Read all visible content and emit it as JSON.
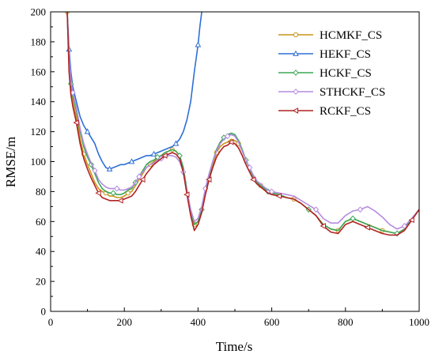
{
  "chart_data": {
    "type": "line",
    "title": "",
    "xlabel": "Time/s",
    "ylabel": "RMSE/m",
    "xlim": [
      0,
      1000
    ],
    "ylim": [
      0,
      200
    ],
    "xticks": [
      0,
      200,
      400,
      600,
      800,
      1000
    ],
    "yticks": [
      0,
      20,
      40,
      60,
      80,
      100,
      120,
      140,
      160,
      180,
      200
    ],
    "legend_position": "top-right",
    "grid": false,
    "series": [
      {
        "name": "HCMKF_CS",
        "color": "#c8961a",
        "marker": "circle",
        "x": [
          45,
          50,
          55,
          60,
          70,
          80,
          90,
          100,
          110,
          120,
          130,
          140,
          150,
          160,
          170,
          180,
          190,
          200,
          210,
          220,
          230,
          240,
          250,
          260,
          270,
          280,
          290,
          300,
          310,
          320,
          330,
          340,
          350,
          360,
          370,
          380,
          390,
          400,
          410,
          420,
          430,
          440,
          450,
          460,
          470,
          480,
          490,
          500,
          510,
          520,
          530,
          540,
          550,
          560,
          570,
          580,
          590,
          600,
          620,
          640,
          660,
          680,
          700,
          720,
          740,
          760,
          780,
          800,
          820,
          840,
          860,
          880,
          900,
          920,
          940,
          960,
          980,
          1000
        ],
        "y": [
          200,
          165,
          148,
          140,
          130,
          115,
          105,
          98,
          92,
          86,
          82,
          80,
          79,
          77,
          77,
          76,
          76,
          77,
          79,
          80,
          84,
          88,
          92,
          96,
          98,
          100,
          102,
          104,
          106,
          107,
          108,
          107,
          104,
          95,
          80,
          66,
          58,
          60,
          68,
          80,
          90,
          98,
          106,
          110,
          112,
          113,
          115,
          114,
          112,
          107,
          101,
          95,
          90,
          86,
          84,
          82,
          80,
          79,
          78,
          76,
          75,
          72,
          68,
          64,
          58,
          55,
          54,
          60,
          62,
          60,
          58,
          56,
          54,
          53,
          52,
          55,
          62,
          68
        ]
      },
      {
        "name": "HEKF_CS",
        "color": "#2e6fd6",
        "marker": "triangle",
        "x": [
          45,
          50,
          55,
          60,
          70,
          80,
          90,
          100,
          110,
          120,
          130,
          140,
          150,
          160,
          170,
          180,
          190,
          200,
          210,
          220,
          230,
          240,
          250,
          260,
          270,
          280,
          290,
          300,
          310,
          320,
          330,
          340,
          350,
          360,
          370,
          380,
          390,
          400,
          405,
          410
        ],
        "y": [
          200,
          175,
          160,
          150,
          140,
          130,
          124,
          120,
          116,
          112,
          105,
          100,
          96,
          95,
          96,
          97,
          98,
          98,
          99,
          100,
          101,
          102,
          103,
          104,
          104,
          105,
          106,
          107,
          108,
          109,
          110,
          112,
          115,
          120,
          128,
          140,
          160,
          178,
          190,
          200
        ]
      },
      {
        "name": "HCKF_CS",
        "color": "#3aa655",
        "marker": "diamond",
        "x": [
          45,
          50,
          55,
          60,
          70,
          80,
          90,
          100,
          110,
          120,
          130,
          140,
          150,
          160,
          170,
          180,
          190,
          200,
          210,
          220,
          230,
          240,
          250,
          260,
          270,
          280,
          290,
          300,
          310,
          320,
          330,
          340,
          350,
          360,
          370,
          380,
          390,
          400,
          410,
          420,
          430,
          440,
          450,
          460,
          470,
          480,
          490,
          500,
          510,
          520,
          530,
          540,
          550,
          560,
          570,
          580,
          590,
          600,
          620,
          640,
          660,
          680,
          700,
          720,
          740,
          760,
          780,
          800,
          820,
          840,
          860,
          880,
          900,
          920,
          940,
          960,
          980,
          1000
        ],
        "y": [
          200,
          168,
          152,
          144,
          134,
          120,
          110,
          103,
          98,
          92,
          86,
          82,
          80,
          79,
          79,
          78,
          78,
          79,
          81,
          82,
          86,
          90,
          94,
          98,
          100,
          101,
          103,
          104,
          106,
          107,
          108,
          107,
          104,
          96,
          81,
          67,
          58,
          60,
          68,
          80,
          91,
          100,
          108,
          113,
          116,
          118,
          119,
          118,
          114,
          108,
          101,
          95,
          90,
          86,
          84,
          82,
          80,
          79,
          78,
          76,
          75,
          72,
          68,
          64,
          58,
          55,
          54,
          60,
          62,
          60,
          58,
          56,
          54,
          53,
          52,
          55,
          62,
          68
        ]
      },
      {
        "name": "STHCKF_CS",
        "color": "#b58be0",
        "marker": "diamond",
        "x": [
          45,
          50,
          55,
          60,
          70,
          80,
          90,
          100,
          110,
          120,
          130,
          140,
          150,
          160,
          170,
          180,
          190,
          200,
          210,
          220,
          230,
          240,
          250,
          260,
          270,
          280,
          290,
          300,
          310,
          320,
          330,
          340,
          350,
          360,
          370,
          380,
          390,
          400,
          410,
          420,
          430,
          440,
          450,
          460,
          470,
          480,
          490,
          500,
          510,
          520,
          530,
          540,
          550,
          560,
          570,
          580,
          590,
          600,
          620,
          640,
          660,
          680,
          700,
          720,
          740,
          760,
          780,
          800,
          820,
          840,
          860,
          880,
          900,
          920,
          940,
          960,
          980,
          1000
        ],
        "y": [
          200,
          170,
          155,
          146,
          136,
          122,
          112,
          105,
          99,
          94,
          88,
          85,
          83,
          82,
          82,
          82,
          81,
          81,
          82,
          83,
          86,
          90,
          93,
          96,
          98,
          99,
          101,
          102,
          103,
          104,
          104,
          103,
          100,
          93,
          80,
          68,
          60,
          62,
          70,
          82,
          92,
          100,
          107,
          112,
          115,
          117,
          118,
          117,
          113,
          107,
          101,
          96,
          91,
          87,
          85,
          83,
          81,
          80,
          79,
          78,
          77,
          74,
          71,
          68,
          62,
          59,
          59,
          64,
          67,
          68,
          70,
          67,
          63,
          58,
          55,
          57,
          62,
          68
        ]
      },
      {
        "name": "RCKF_CS",
        "color": "#b22222",
        "marker": "left-triangle",
        "x": [
          45,
          50,
          55,
          60,
          70,
          80,
          90,
          100,
          110,
          120,
          130,
          140,
          150,
          160,
          170,
          180,
          190,
          200,
          210,
          220,
          230,
          240,
          250,
          260,
          270,
          280,
          290,
          300,
          310,
          320,
          330,
          340,
          350,
          360,
          370,
          380,
          390,
          400,
          410,
          420,
          430,
          440,
          450,
          460,
          470,
          480,
          490,
          500,
          510,
          520,
          530,
          540,
          550,
          560,
          570,
          580,
          590,
          600,
          620,
          640,
          660,
          680,
          700,
          720,
          740,
          760,
          780,
          800,
          820,
          840,
          860,
          880,
          900,
          920,
          940,
          960,
          980,
          1000
        ],
        "y": [
          200,
          160,
          145,
          137,
          126,
          112,
          102,
          95,
          89,
          84,
          79,
          76,
          75,
          74,
          74,
          74,
          74,
          75,
          76,
          77,
          80,
          84,
          88,
          92,
          95,
          98,
          100,
          102,
          104,
          105,
          106,
          105,
          102,
          93,
          78,
          64,
          54,
          58,
          66,
          78,
          88,
          96,
          103,
          107,
          110,
          111,
          113,
          112,
          109,
          104,
          98,
          93,
          88,
          85,
          83,
          81,
          79,
          78,
          77,
          76,
          75,
          72,
          68,
          64,
          57,
          53,
          52,
          58,
          60,
          58,
          56,
          54,
          52,
          51,
          51,
          54,
          61,
          68
        ]
      }
    ]
  }
}
